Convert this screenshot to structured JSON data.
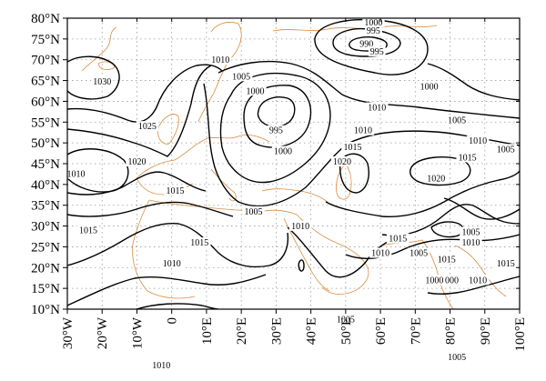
{
  "map": {
    "lon_range": [
      -30,
      100
    ],
    "lat_range": [
      10,
      80
    ],
    "lat_ticks": [
      {
        "value": 80,
        "label": "80°N"
      },
      {
        "value": 75,
        "label": "75°N"
      },
      {
        "value": 70,
        "label": "70°N"
      },
      {
        "value": 65,
        "label": "65°N"
      },
      {
        "value": 60,
        "label": "60°N"
      },
      {
        "value": 55,
        "label": "55°N"
      },
      {
        "value": 50,
        "label": "50°N"
      },
      {
        "value": 45,
        "label": "45°N"
      },
      {
        "value": 40,
        "label": "40°N"
      },
      {
        "value": 35,
        "label": "35°N"
      },
      {
        "value": 30,
        "label": "30°N"
      },
      {
        "value": 25,
        "label": "25°N"
      },
      {
        "value": 20,
        "label": "20°N"
      },
      {
        "value": 15,
        "label": "15°N"
      },
      {
        "value": 10,
        "label": "10°N"
      }
    ],
    "lon_ticks": [
      {
        "value": -30,
        "label": "30°W"
      },
      {
        "value": -20,
        "label": "20°W"
      },
      {
        "value": -10,
        "label": "10°W"
      },
      {
        "value": 0,
        "label": "0"
      },
      {
        "value": 10,
        "label": "10°E"
      },
      {
        "value": 20,
        "label": "20°E"
      },
      {
        "value": 30,
        "label": "30°E"
      },
      {
        "value": 40,
        "label": "40°E"
      },
      {
        "value": 50,
        "label": "50°E"
      },
      {
        "value": 60,
        "label": "60°E"
      },
      {
        "value": 70,
        "label": "70°E"
      },
      {
        "value": 80,
        "label": "80°E"
      },
      {
        "value": 90,
        "label": "90°E"
      },
      {
        "value": 100,
        "label": "100°E"
      }
    ],
    "contour_labels": [
      {
        "text": "1000",
        "lon": 58,
        "lat": 78.5
      },
      {
        "text": "995",
        "lon": 58,
        "lat": 76.5
      },
      {
        "text": "990",
        "lon": 56,
        "lat": 73.3
      },
      {
        "text": "995",
        "lon": 59,
        "lat": 71.5
      },
      {
        "text": "1000",
        "lon": 74,
        "lat": 63
      },
      {
        "text": "1030",
        "lon": -20,
        "lat": 64.2
      },
      {
        "text": "1010",
        "lon": 14,
        "lat": 69.5
      },
      {
        "text": "1005",
        "lon": 20,
        "lat": 65.5
      },
      {
        "text": "1000",
        "lon": 24,
        "lat": 62
      },
      {
        "text": "1010",
        "lon": 59,
        "lat": 58
      },
      {
        "text": "1005",
        "lon": 82,
        "lat": 55
      },
      {
        "text": "1025",
        "lon": -7,
        "lat": 53.5
      },
      {
        "text": "995",
        "lon": 30,
        "lat": 52.5
      },
      {
        "text": "1010",
        "lon": 55,
        "lat": 52.5
      },
      {
        "text": "1010",
        "lon": 88,
        "lat": 50
      },
      {
        "text": "1005",
        "lon": 96,
        "lat": 48
      },
      {
        "text": "1015",
        "lon": 52,
        "lat": 48.5
      },
      {
        "text": "1000",
        "lon": 32,
        "lat": 47.5
      },
      {
        "text": "1015",
        "lon": 85,
        "lat": 46
      },
      {
        "text": "1020",
        "lon": -10,
        "lat": 45
      },
      {
        "text": "1020",
        "lon": 49,
        "lat": 45
      },
      {
        "text": "1010",
        "lon": -27.5,
        "lat": 42
      },
      {
        "text": "1020",
        "lon": 76,
        "lat": 41
      },
      {
        "text": "1015",
        "lon": 1,
        "lat": 38
      },
      {
        "text": "1005",
        "lon": 23.5,
        "lat": 33
      },
      {
        "text": "1010",
        "lon": 37,
        "lat": 29.5
      },
      {
        "text": "1015",
        "lon": -24,
        "lat": 28.5
      },
      {
        "text": "1005",
        "lon": 86,
        "lat": 28
      },
      {
        "text": "1015",
        "lon": 8,
        "lat": 25.5
      },
      {
        "text": "1015",
        "lon": 65,
        "lat": 26.5
      },
      {
        "text": "1010",
        "lon": 86,
        "lat": 25.5
      },
      {
        "text": "1010",
        "lon": 60,
        "lat": 23
      },
      {
        "text": "1005",
        "lon": 71,
        "lat": 23
      },
      {
        "text": "1015",
        "lon": 79,
        "lat": 21.5
      },
      {
        "text": "1015",
        "lon": 96,
        "lat": 20.5
      },
      {
        "text": "1010",
        "lon": 0,
        "lat": 20.5
      },
      {
        "text": "1000",
        "lon": 75.5,
        "lat": 16.5
      },
      {
        "text": "000",
        "lon": 80.5,
        "lat": 16.5
      },
      {
        "text": "1010",
        "lon": 88,
        "lat": 16.5
      },
      {
        "text": "1005",
        "lon": 50,
        "lat": 7
      },
      {
        "text": "1005",
        "lon": 82,
        "lat": -2
      },
      {
        "text": "1010",
        "lon": -3,
        "lat": -4
      }
    ]
  },
  "colors": {
    "contour": "#000000",
    "coastline": "#d98c3c",
    "grid": "#9a9a9a"
  }
}
